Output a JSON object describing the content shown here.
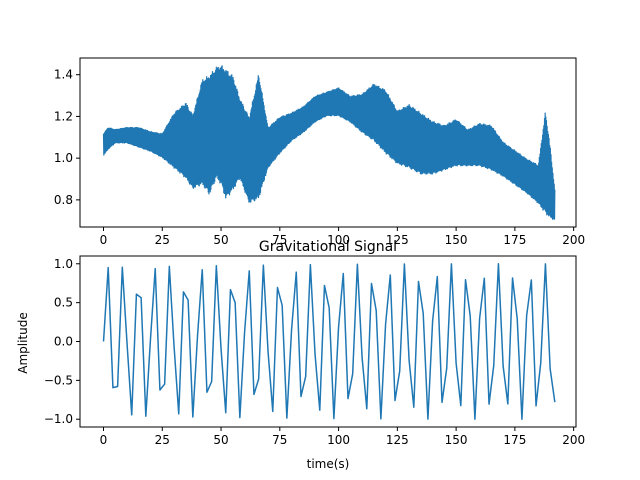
{
  "chart_data": [
    {
      "type": "line",
      "title": "",
      "xlabel": "",
      "ylabel": "",
      "xlim": [
        -10,
        201
      ],
      "ylim": [
        0.67,
        1.48
      ],
      "xticks": [
        0,
        25,
        50,
        75,
        100,
        125,
        150,
        175,
        200
      ],
      "yticks": [
        0.8,
        1.0,
        1.2,
        1.4
      ],
      "color": "#1f77b4",
      "envelope": {
        "description_x": [
          0,
          2,
          5,
          10,
          15,
          20,
          25,
          30,
          35,
          38,
          42,
          45,
          48,
          50,
          52,
          55,
          58,
          62,
          66,
          70,
          75,
          80,
          85,
          90,
          95,
          100,
          105,
          110,
          115,
          120,
          125,
          130,
          135,
          140,
          145,
          150,
          155,
          160,
          165,
          170,
          175,
          180,
          185,
          188,
          190,
          192
        ],
        "upper": [
          1.12,
          1.15,
          1.14,
          1.15,
          1.15,
          1.13,
          1.12,
          1.22,
          1.27,
          1.21,
          1.38,
          1.4,
          1.44,
          1.45,
          1.43,
          1.4,
          1.29,
          1.2,
          1.41,
          1.15,
          1.2,
          1.22,
          1.25,
          1.3,
          1.32,
          1.34,
          1.3,
          1.31,
          1.36,
          1.33,
          1.23,
          1.26,
          1.22,
          1.18,
          1.16,
          1.19,
          1.14,
          1.17,
          1.16,
          1.08,
          1.04,
          1.0,
          0.97,
          1.23,
          1.06,
          0.85
        ],
        "lower": [
          1.01,
          1.04,
          1.07,
          1.07,
          1.05,
          1.03,
          1.0,
          0.95,
          0.9,
          0.85,
          0.87,
          0.82,
          0.9,
          0.87,
          0.8,
          0.84,
          0.9,
          0.78,
          0.8,
          0.95,
          1.02,
          1.08,
          1.12,
          1.17,
          1.2,
          1.2,
          1.17,
          1.12,
          1.08,
          1.02,
          0.97,
          0.95,
          0.92,
          0.92,
          0.94,
          0.96,
          0.96,
          0.96,
          0.94,
          0.91,
          0.87,
          0.83,
          0.78,
          0.73,
          0.71,
          0.7
        ]
      }
    },
    {
      "type": "line",
      "title": "Gravitational Signal",
      "xlabel": "time(s)",
      "ylabel": "Amplitude",
      "xlim": [
        -10,
        201
      ],
      "ylim": [
        -1.1,
        1.1
      ],
      "xticks": [
        0,
        25,
        50,
        75,
        100,
        125,
        150,
        175,
        200
      ],
      "yticks": [
        -1.0,
        -0.5,
        0.0,
        0.5,
        1.0
      ],
      "color": "#1f77b4",
      "frequency_hz": 0.1503,
      "x_start": 0,
      "x_end": 192,
      "x_step": 2
    }
  ]
}
